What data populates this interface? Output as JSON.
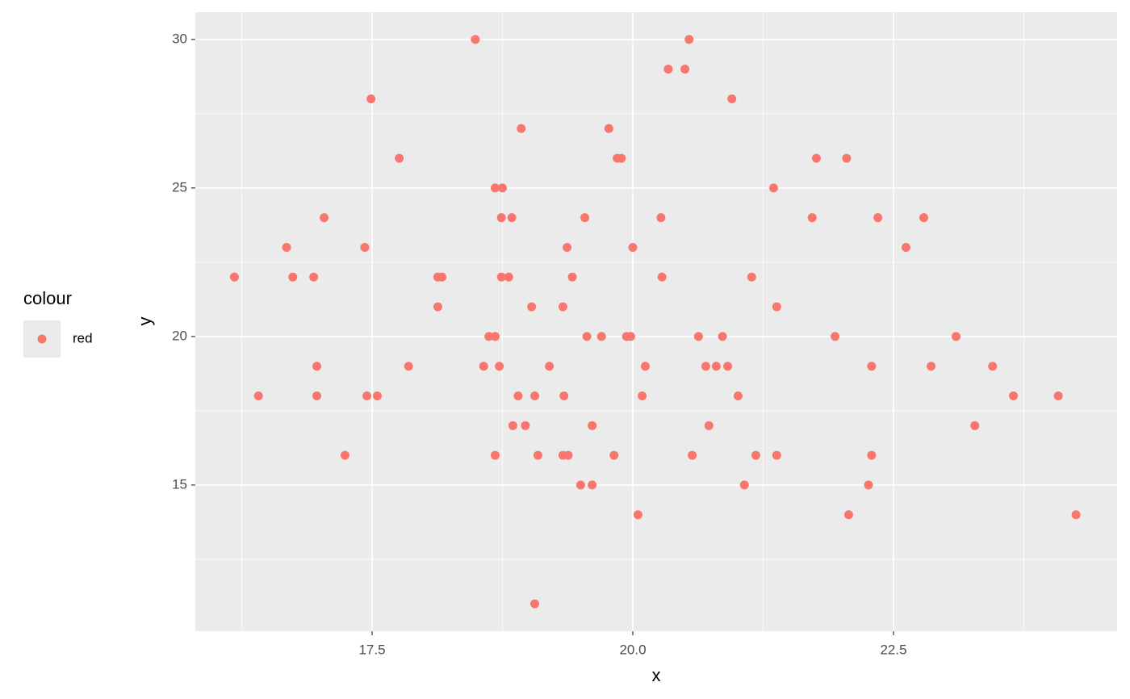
{
  "chart_data": {
    "type": "scatter",
    "x_label": "x",
    "y_label": "y",
    "legend_title": "colour",
    "xlim": [
      15.805,
      24.644
    ],
    "ylim": [
      10.08,
      30.92
    ],
    "xticks": [
      17.5,
      {
        "value": 20,
        "label": "20.0"
      },
      22.5
    ],
    "yticks": [
      15,
      20,
      25,
      30
    ],
    "grid": true,
    "minor_grid": true,
    "legend": "left",
    "series": [
      {
        "name": "red",
        "color": "#F8766D",
        "x": [
          16.18,
          16.41,
          16.68,
          16.74,
          16.94,
          16.97,
          16.97,
          17.04,
          17.24,
          17.43,
          17.45,
          17.49,
          17.55,
          17.76,
          17.85,
          18.13,
          18.13,
          18.17,
          18.49,
          18.57,
          18.62,
          18.68,
          18.68,
          18.68,
          18.72,
          18.74,
          18.74,
          18.75,
          18.81,
          18.84,
          18.85,
          18.9,
          18.93,
          18.97,
          19.03,
          19.06,
          19.06,
          19.09,
          19.2,
          19.33,
          19.33,
          19.34,
          19.37,
          19.38,
          19.42,
          19.5,
          19.54,
          19.56,
          19.61,
          19.61,
          19.7,
          19.77,
          19.82,
          19.85,
          19.89,
          19.94,
          19.98,
          20.0,
          20.05,
          20.09,
          20.12,
          20.27,
          20.28,
          20.34,
          20.5,
          20.54,
          20.57,
          20.63,
          20.7,
          20.73,
          20.8,
          20.86,
          20.91,
          20.95,
          21.01,
          21.07,
          21.14,
          21.18,
          21.35,
          21.38,
          21.38,
          21.72,
          21.76,
          21.94,
          22.05,
          22.07,
          22.26,
          22.29,
          22.29,
          22.35,
          22.62,
          22.79,
          22.86,
          23.1,
          23.28,
          23.45,
          23.65,
          24.08,
          24.25
        ],
        "y": [
          22,
          18,
          23,
          22,
          22,
          19,
          18,
          24,
          16,
          23,
          18,
          28,
          18,
          26,
          19,
          21,
          22,
          22,
          30,
          19,
          20,
          25,
          20,
          16,
          19,
          24,
          22,
          25,
          22,
          24,
          17,
          18,
          27,
          17,
          21,
          11,
          18,
          16,
          19,
          21,
          16,
          18,
          23,
          16,
          22,
          15,
          24,
          20,
          17,
          15,
          20,
          27,
          16,
          26,
          26,
          20,
          20,
          23,
          14,
          18,
          19,
          24,
          22,
          29,
          29,
          30,
          16,
          20,
          19,
          17,
          19,
          20,
          19,
          28,
          18,
          15,
          22,
          16,
          25,
          21,
          16,
          24,
          26,
          20,
          26,
          14,
          15,
          19,
          16,
          24,
          23,
          24,
          19,
          20,
          17,
          19,
          18,
          18,
          14
        ]
      }
    ]
  }
}
